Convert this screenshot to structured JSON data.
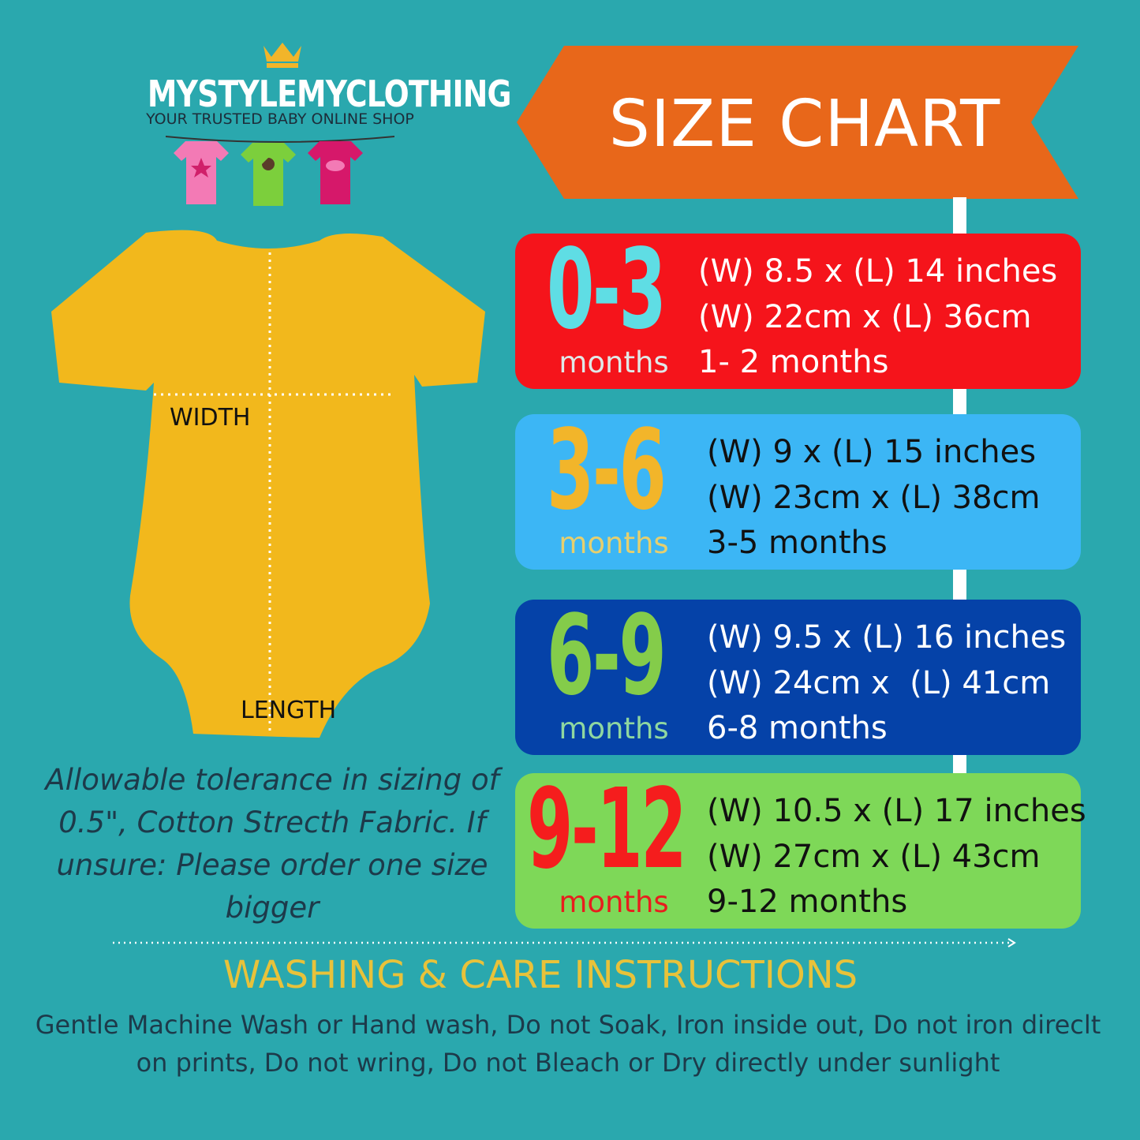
{
  "logo": {
    "name": "MYSTYLEMYCLOTHING",
    "tagline": "YOUR TRUSTED BABY ONLINE SHOP",
    "icon": "crown-icon"
  },
  "banner": {
    "title": "SIZE CHART",
    "color": "#e8671a"
  },
  "garment": {
    "width_label": "WIDTH",
    "length_label": "LENGTH",
    "color": "#f2b81c"
  },
  "sizes": [
    {
      "range": "0-3",
      "unit": "months",
      "lines": [
        "(W) 8.5 x (L) 14 inches",
        "(W) 22cm x (L) 36cm",
        "1- 2 months"
      ],
      "bg": "#f5141b",
      "range_color": "#5fdde4",
      "unit_color": "#dfe8e8",
      "text_color": "#ffffff"
    },
    {
      "range": "3-6",
      "unit": "months",
      "lines": [
        "(W) 9 x (L) 15 inches",
        "(W) 23cm x (L) 38cm",
        "3-5 months"
      ],
      "bg": "#3cb6f5",
      "range_color": "#f2b52a",
      "unit_color": "#e6cf6e",
      "text_color": "#111111"
    },
    {
      "range": "6-9",
      "unit": "months",
      "lines": [
        "(W) 9.5 x (L) 16 inches",
        "(W) 24cm x  (L) 41cm",
        "6-8 months"
      ],
      "bg": "#0542a8",
      "range_color": "#84cc4a",
      "unit_color": "#8fd7a0",
      "text_color": "#ffffff"
    },
    {
      "range": "9-12",
      "unit": "months",
      "lines": [
        "(W) 10.5 x (L) 17 inches",
        "(W) 27cm x (L) 43cm",
        "9-12 months"
      ],
      "bg": "#7ed858",
      "range_color": "#f51d1d",
      "unit_color": "#e81d1d",
      "text_color": "#111111"
    }
  ],
  "note": "Allowable tolerance in sizing of 0.5\", Cotton Strecth Fabric. If unsure: Please order one size bigger",
  "washing": {
    "title": "WASHING & CARE INSTRUCTIONS",
    "text": "Gentle Machine Wash or Hand wash, Do not Soak, Iron inside out, Do not iron direclt on prints, Do not wring, Do not Bleach or Dry directly under sunlight"
  }
}
